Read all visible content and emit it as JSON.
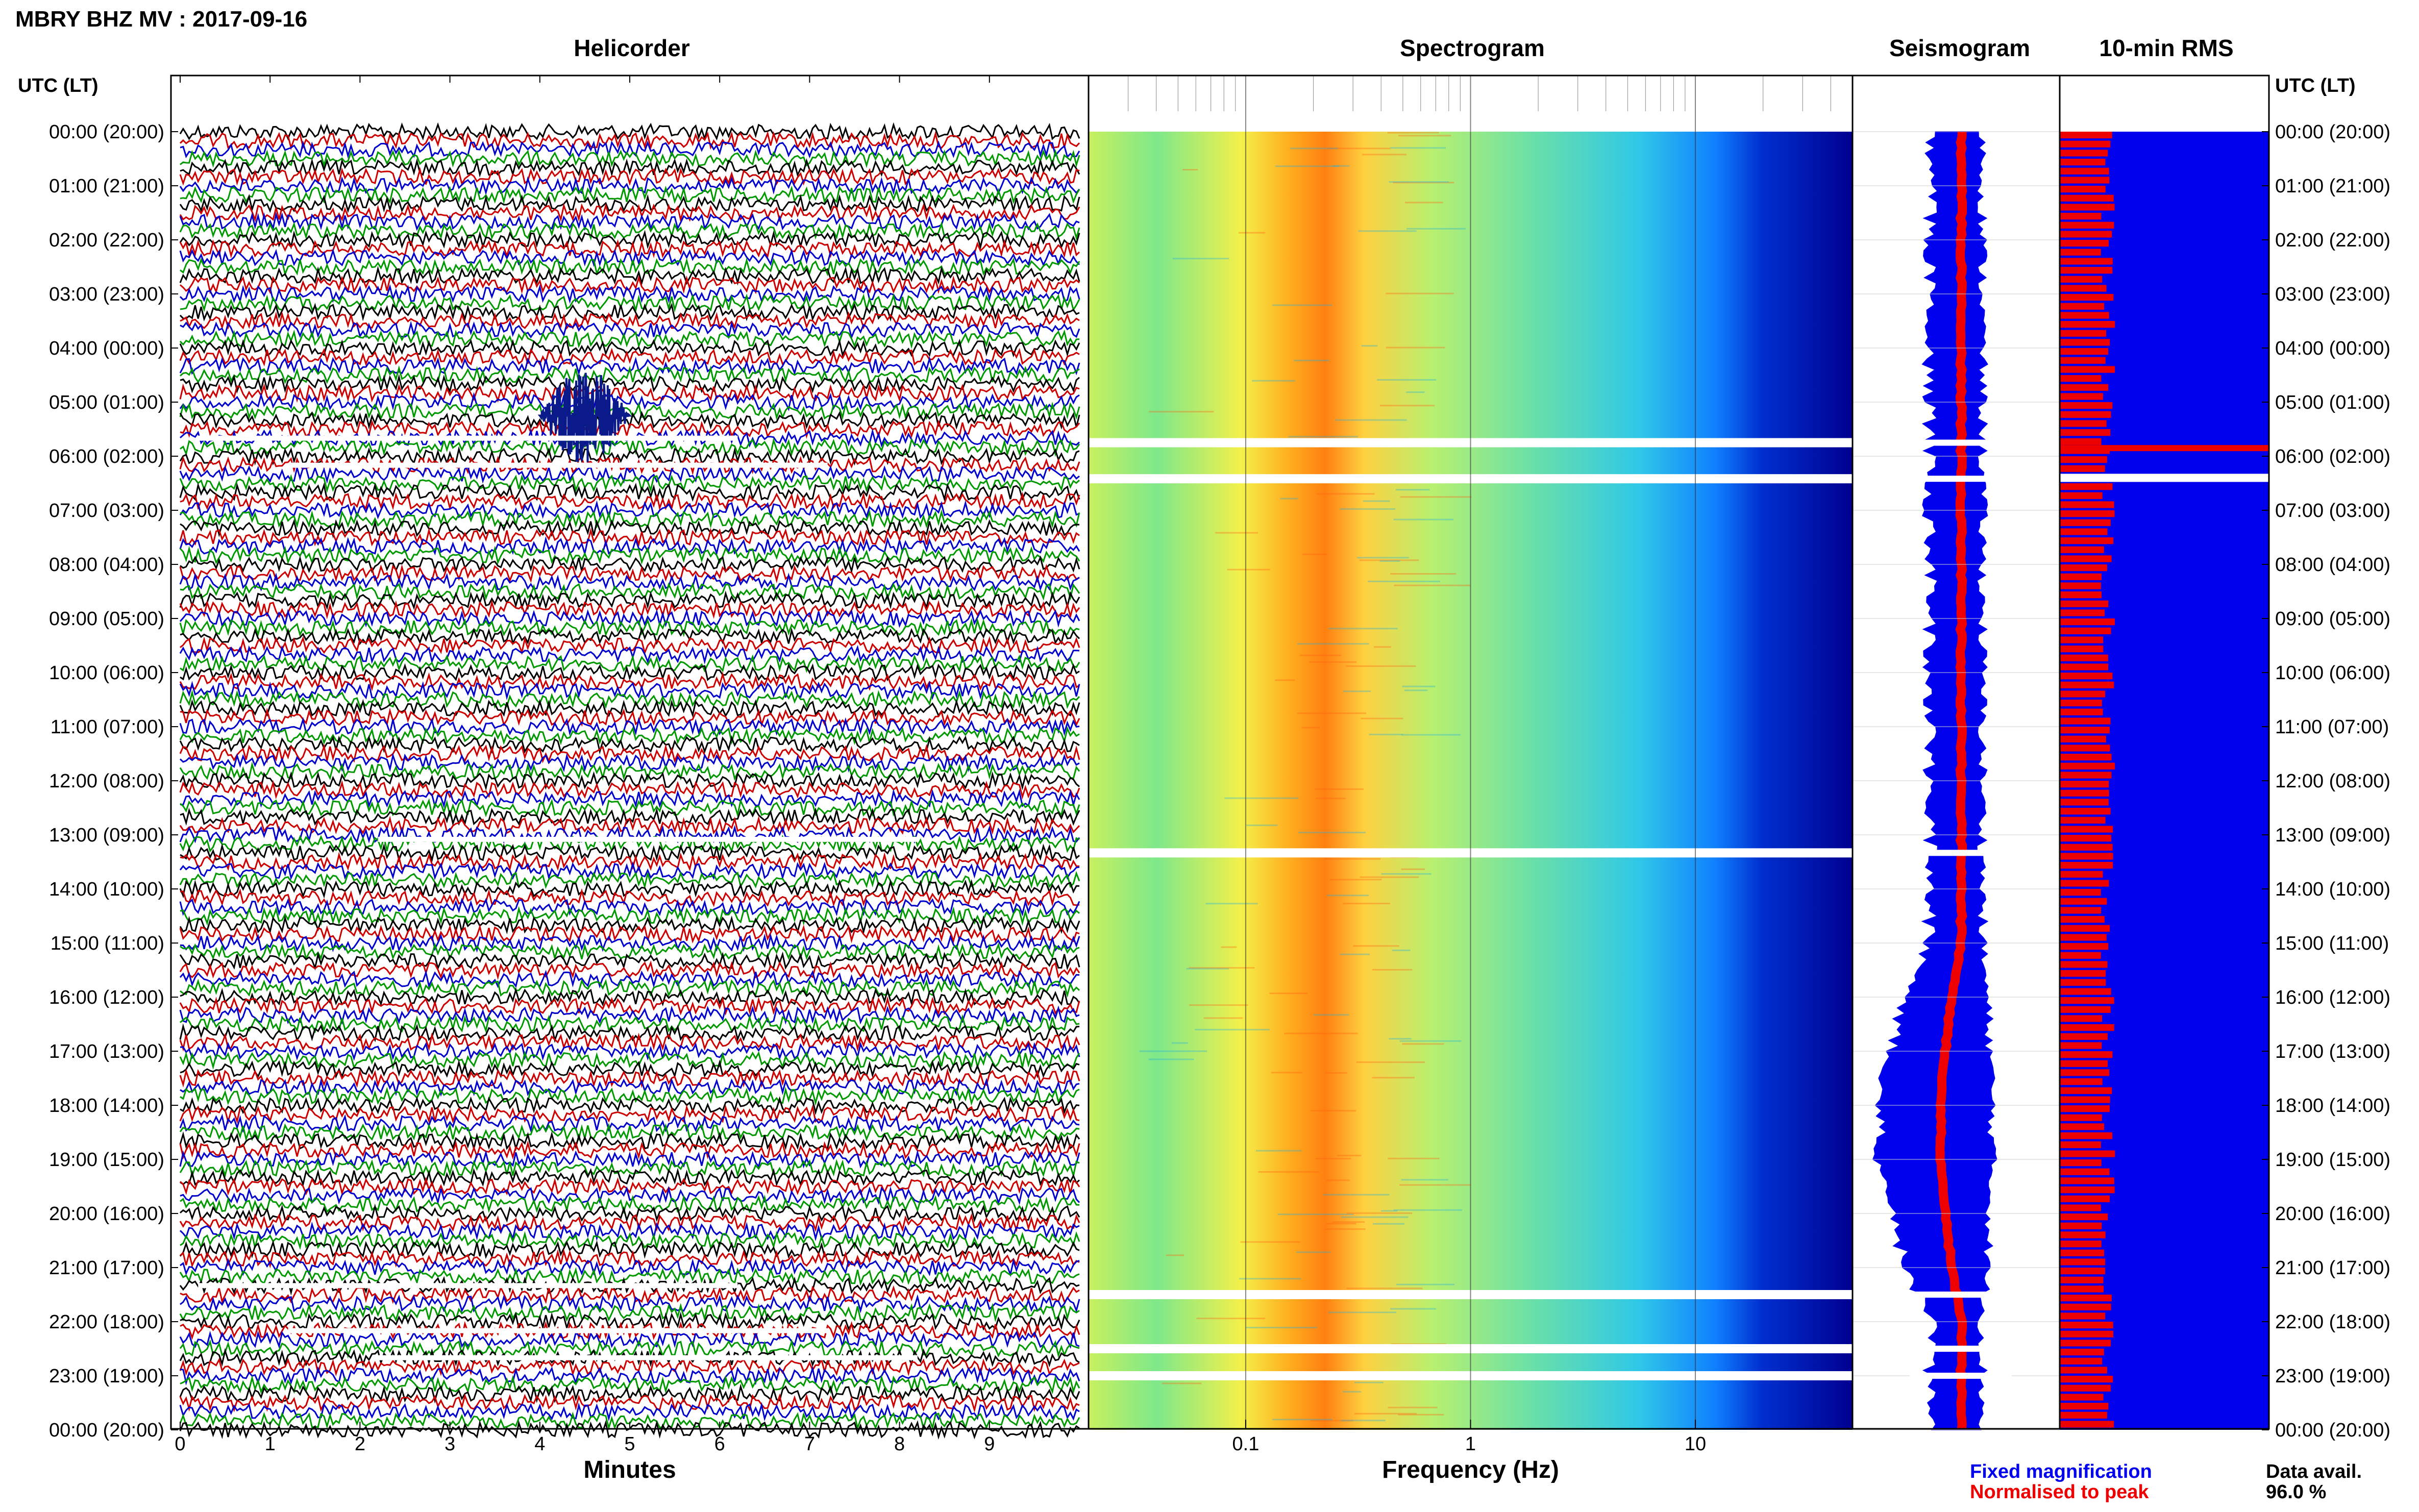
{
  "header": {
    "title": "MBRY BHZ MV : 2017-09-16",
    "left_axis_label": "UTC (LT)",
    "right_axis_label": "UTC (LT)"
  },
  "panels": {
    "helicorder": "Helicorder",
    "spectrogram": "Spectrogram",
    "seismogram": "Seismogram",
    "rms": "10-min RMS"
  },
  "legend": {
    "fixed": "Fixed magnification",
    "normalised": "Normalised to peak",
    "fixed_color": "#0000ee",
    "normalised_color": "#ee0000"
  },
  "data_availability": {
    "label": "Data avail.",
    "value": "96.0 %"
  },
  "time_labels": [
    "00:00 (20:00)",
    "01:00 (21:00)",
    "02:00 (22:00)",
    "03:00 (23:00)",
    "04:00 (00:00)",
    "05:00 (01:00)",
    "06:00 (02:00)",
    "07:00 (03:00)",
    "08:00 (04:00)",
    "09:00 (05:00)",
    "10:00 (06:00)",
    "11:00 (07:00)",
    "12:00 (08:00)",
    "13:00 (09:00)",
    "14:00 (10:00)",
    "15:00 (11:00)",
    "16:00 (12:00)",
    "17:00 (13:00)",
    "18:00 (14:00)",
    "19:00 (15:00)",
    "20:00 (16:00)",
    "21:00 (17:00)",
    "22:00 (18:00)",
    "23:00 (19:00)",
    "00:00 (20:00)"
  ],
  "chart_data": [
    {
      "type": "line",
      "title": "Helicorder",
      "xlabel": "Minutes",
      "x_ticks": [
        "0",
        "1",
        "2",
        "3",
        "4",
        "5",
        "6",
        "7",
        "8",
        "9"
      ],
      "xlim": [
        0,
        10
      ],
      "rows_per_hour": 6,
      "trace_colors": [
        "#000000",
        "#cc0000",
        "#0000cc",
        "#009900"
      ],
      "events": [
        {
          "time_utc": "04:30-06:00",
          "minutes": [
            4.0,
            5.0
          ],
          "description_color": "#0a1a8a"
        }
      ],
      "gaps_utc": [
        "05:40",
        "06:10",
        "13:05",
        "21:20",
        "22:10",
        "22:40"
      ]
    },
    {
      "type": "heatmap",
      "title": "Spectrogram",
      "xlabel": "Frequency (Hz)",
      "x_scale": "log",
      "xlim": [
        0.02,
        50
      ],
      "x_ticks": [
        "0.1",
        "1",
        "10"
      ],
      "colormap": "jet",
      "gaps_utc": [
        "05:45",
        "06:25",
        "13:20",
        "21:30",
        "22:30",
        "23:00"
      ]
    },
    {
      "type": "line",
      "title": "Seismogram",
      "series": [
        {
          "name": "Fixed magnification",
          "color": "#0000ee"
        },
        {
          "name": "Normalised to peak",
          "color": "#ee0000"
        }
      ]
    },
    {
      "type": "bar",
      "title": "10-min RMS",
      "series": [
        {
          "name": "Fixed magnification",
          "color": "#0000ee",
          "level": 1.0
        },
        {
          "name": "Normalised to peak",
          "color": "#ee0000",
          "level": 0.23
        }
      ]
    }
  ]
}
